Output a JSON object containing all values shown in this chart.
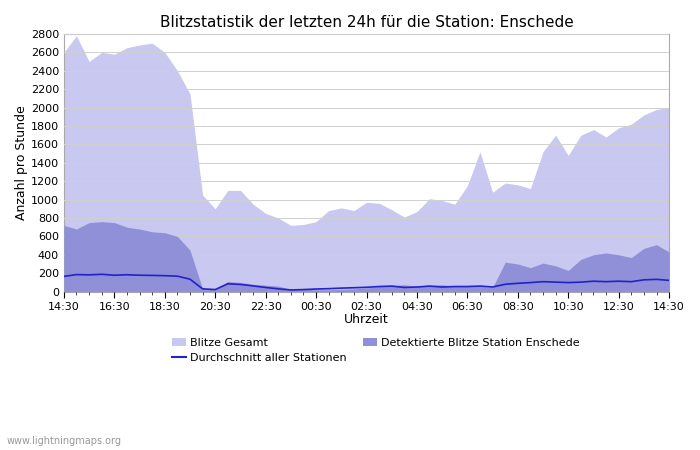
{
  "title": "Blitzstatistik der letzten 24h für die Station: Enschede",
  "xlabel": "Uhrzeit",
  "ylabel": "Anzahl pro Stunde",
  "ylim": [
    0,
    2800
  ],
  "yticks": [
    0,
    200,
    400,
    600,
    800,
    1000,
    1200,
    1400,
    1600,
    1800,
    2000,
    2200,
    2400,
    2600,
    2800
  ],
  "xtick_labels": [
    "14:30",
    "16:30",
    "18:30",
    "20:30",
    "22:30",
    "00:30",
    "02:30",
    "04:30",
    "06:30",
    "08:30",
    "10:30",
    "12:30",
    "14:30"
  ],
  "watermark": "www.lightningmaps.org",
  "color_gesamt": "#c8c8f0",
  "color_detektiert": "#9090d8",
  "color_durchschnitt": "#2222cc",
  "background_color": "#ffffff",
  "grid_color": "#d0d0d0",
  "legend_gesamt": "Blitze Gesamt",
  "legend_detektiert": "Detektierte Blitze Station Enschede",
  "legend_avg": "Durchschnitt aller Stationen",
  "n_points": 49,
  "blitze_gesamt": [
    2600,
    2780,
    2500,
    2600,
    2580,
    2650,
    2680,
    2700,
    2600,
    2400,
    2150,
    1050,
    900,
    1100,
    1100,
    950,
    850,
    800,
    720,
    730,
    760,
    880,
    910,
    880,
    970,
    960,
    890,
    810,
    870,
    1010,
    990,
    950,
    1150,
    1520,
    1080,
    1180,
    1160,
    1120,
    1520,
    1700,
    1480,
    1700,
    1760,
    1680,
    1780,
    1820,
    1920,
    1980,
    2000
  ],
  "detektiert": [
    720,
    680,
    750,
    760,
    750,
    700,
    680,
    650,
    640,
    600,
    450,
    30,
    20,
    110,
    100,
    80,
    70,
    60,
    25,
    25,
    20,
    20,
    25,
    30,
    40,
    55,
    65,
    75,
    55,
    65,
    75,
    55,
    55,
    55,
    45,
    320,
    300,
    260,
    310,
    280,
    230,
    350,
    400,
    420,
    400,
    370,
    470,
    510,
    430
  ],
  "durchschnitt": [
    165,
    185,
    182,
    188,
    178,
    183,
    178,
    176,
    173,
    168,
    135,
    30,
    22,
    85,
    78,
    62,
    45,
    30,
    18,
    22,
    28,
    32,
    38,
    42,
    47,
    55,
    60,
    45,
    50,
    60,
    50,
    55,
    55,
    60,
    50,
    80,
    90,
    98,
    108,
    103,
    98,
    103,
    113,
    108,
    113,
    108,
    128,
    133,
    122
  ]
}
